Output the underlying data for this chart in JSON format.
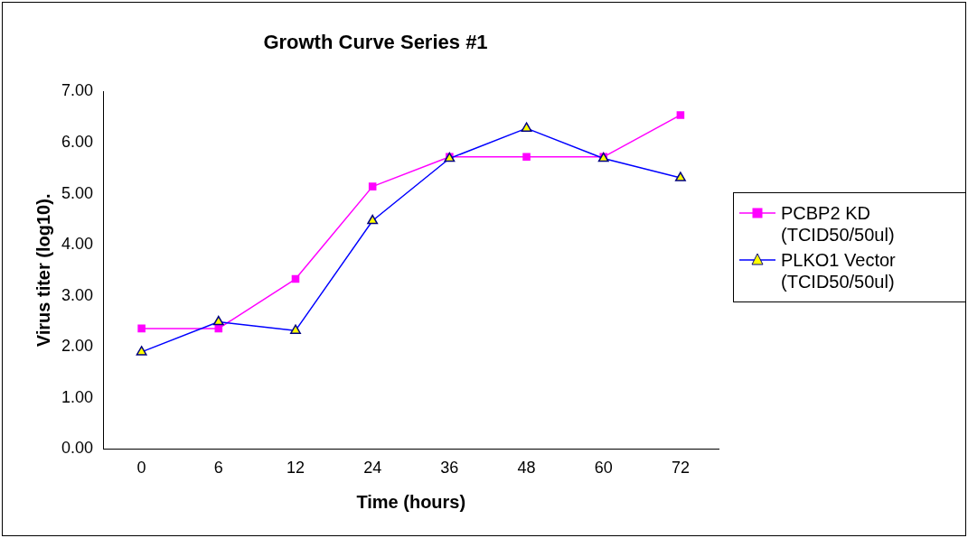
{
  "chart_data": {
    "type": "line",
    "title": "Growth Curve Series #1",
    "xlabel": "Time (hours)",
    "ylabel": "Virus titer (log10).",
    "categories": [
      "0",
      "6",
      "12",
      "24",
      "36",
      "48",
      "60",
      "72"
    ],
    "series": [
      {
        "name": "PCBP2 KD (TCID50/50ul)",
        "color": "#ff00ff",
        "marker": "square",
        "values": [
          2.36,
          2.36,
          3.33,
          5.14,
          5.72,
          5.72,
          5.72,
          6.54
        ]
      },
      {
        "name": "PLKO1 Vector (TCID50/50ul)",
        "color": "#0000ff",
        "marker": "triangle",
        "values": [
          1.9,
          2.49,
          2.32,
          4.47,
          5.69,
          6.28,
          5.69,
          5.31
        ]
      }
    ],
    "ylim": [
      0,
      7
    ],
    "yticks": [
      {
        "value": 0,
        "label": "0.00"
      },
      {
        "value": 1,
        "label": "1.00"
      },
      {
        "value": 2,
        "label": "2.00"
      },
      {
        "value": 3,
        "label": "3.00"
      },
      {
        "value": 4,
        "label": "4.00"
      },
      {
        "value": 5,
        "label": "5.00"
      },
      {
        "value": 6,
        "label": "6.00"
      },
      {
        "value": 7,
        "label": "7.00"
      }
    ],
    "grid": false,
    "legend": "right",
    "line_style": "solid"
  }
}
